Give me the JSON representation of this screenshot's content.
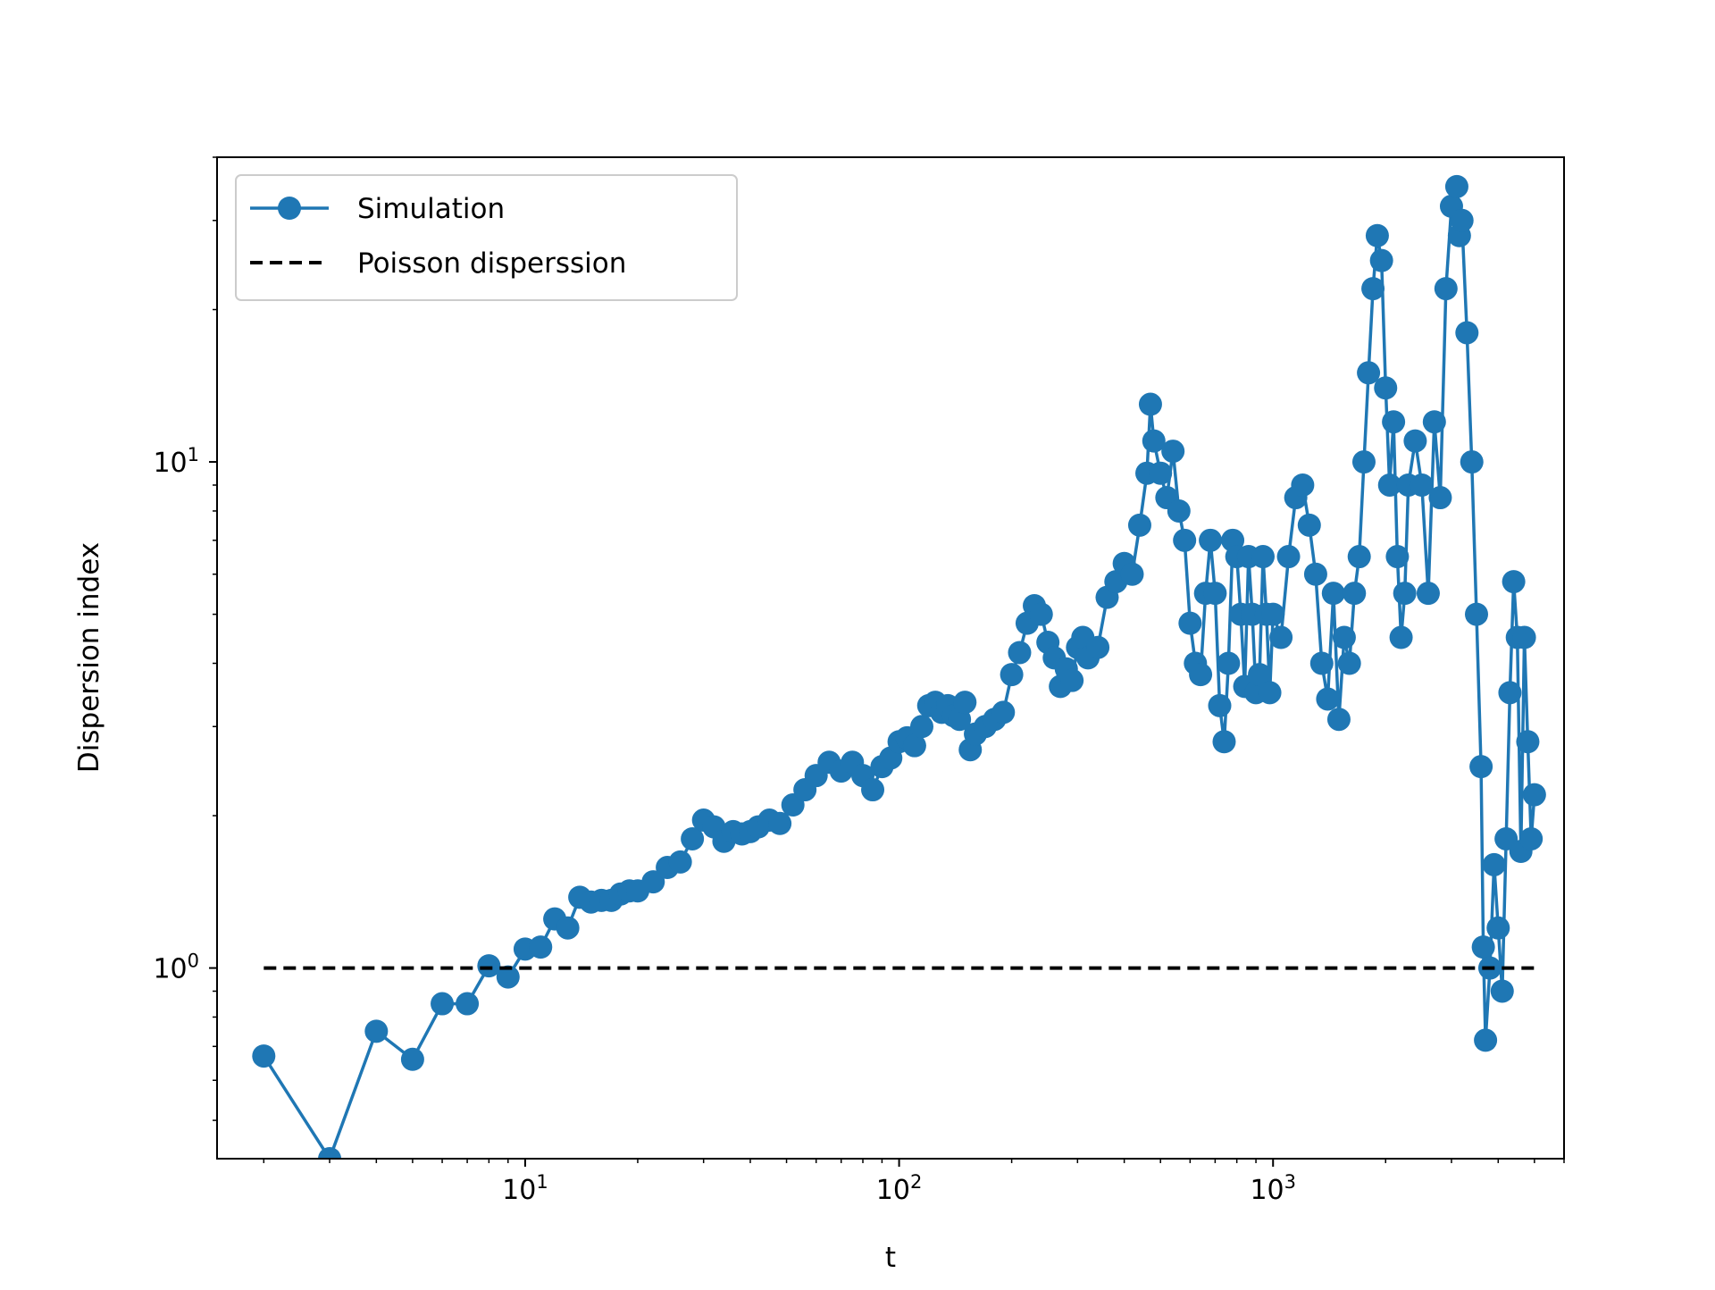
{
  "chart_data": {
    "type": "line",
    "title": "",
    "xlabel": "t",
    "ylabel": "Dispersion index",
    "xscale": "log",
    "yscale": "log",
    "xlim": [
      1.5,
      6000
    ],
    "ylim": [
      0.42,
      40
    ],
    "grid": false,
    "legend_position": "top-left",
    "x_tick_labels": [
      {
        "base": "10",
        "exponent": "1",
        "value": 10
      },
      {
        "base": "10",
        "exponent": "2",
        "value": 100
      },
      {
        "base": "10",
        "exponent": "3",
        "value": 1000
      }
    ],
    "y_tick_labels": [
      {
        "base": "10",
        "exponent": "0",
        "value": 1
      },
      {
        "base": "10",
        "exponent": "1",
        "value": 10
      }
    ],
    "series": [
      {
        "name": "Simulation",
        "color": "#1f77b4",
        "style": "line-with-circle-markers",
        "points": [
          [
            2,
            0.67
          ],
          [
            3,
            0.42
          ],
          [
            4,
            0.75
          ],
          [
            5,
            0.66
          ],
          [
            6,
            0.85
          ],
          [
            7,
            0.85
          ],
          [
            8,
            1.01
          ],
          [
            9,
            0.96
          ],
          [
            10,
            1.09
          ],
          [
            11,
            1.1
          ],
          [
            12,
            1.25
          ],
          [
            13,
            1.2
          ],
          [
            14,
            1.38
          ],
          [
            15,
            1.35
          ],
          [
            16,
            1.36
          ],
          [
            17,
            1.36
          ],
          [
            18,
            1.4
          ],
          [
            19,
            1.42
          ],
          [
            20,
            1.42
          ],
          [
            22,
            1.48
          ],
          [
            24,
            1.58
          ],
          [
            26,
            1.62
          ],
          [
            28,
            1.8
          ],
          [
            30,
            1.96
          ],
          [
            32,
            1.9
          ],
          [
            34,
            1.78
          ],
          [
            36,
            1.86
          ],
          [
            38,
            1.84
          ],
          [
            40,
            1.86
          ],
          [
            42,
            1.9
          ],
          [
            45,
            1.96
          ],
          [
            48,
            1.93
          ],
          [
            52,
            2.1
          ],
          [
            56,
            2.25
          ],
          [
            60,
            2.4
          ],
          [
            65,
            2.55
          ],
          [
            70,
            2.45
          ],
          [
            75,
            2.55
          ],
          [
            80,
            2.4
          ],
          [
            85,
            2.25
          ],
          [
            90,
            2.5
          ],
          [
            95,
            2.6
          ],
          [
            100,
            2.8
          ],
          [
            105,
            2.85
          ],
          [
            110,
            2.75
          ],
          [
            115,
            3.0
          ],
          [
            120,
            3.3
          ],
          [
            125,
            3.35
          ],
          [
            130,
            3.2
          ],
          [
            135,
            3.3
          ],
          [
            140,
            3.15
          ],
          [
            145,
            3.1
          ],
          [
            150,
            3.35
          ],
          [
            155,
            2.7
          ],
          [
            160,
            2.9
          ],
          [
            170,
            3.0
          ],
          [
            180,
            3.1
          ],
          [
            190,
            3.2
          ],
          [
            200,
            3.8
          ],
          [
            210,
            4.2
          ],
          [
            220,
            4.8
          ],
          [
            230,
            5.2
          ],
          [
            240,
            5.0
          ],
          [
            250,
            4.4
          ],
          [
            260,
            4.1
          ],
          [
            270,
            3.6
          ],
          [
            280,
            3.9
          ],
          [
            290,
            3.7
          ],
          [
            300,
            4.3
          ],
          [
            310,
            4.5
          ],
          [
            320,
            4.1
          ],
          [
            340,
            4.3
          ],
          [
            360,
            5.4
          ],
          [
            380,
            5.8
          ],
          [
            400,
            6.3
          ],
          [
            420,
            6.0
          ],
          [
            440,
            7.5
          ],
          [
            460,
            9.5
          ],
          [
            470,
            13.0
          ],
          [
            480,
            11.0
          ],
          [
            500,
            9.5
          ],
          [
            520,
            8.5
          ],
          [
            540,
            10.5
          ],
          [
            560,
            8.0
          ],
          [
            580,
            7.0
          ],
          [
            600,
            4.8
          ],
          [
            620,
            4.0
          ],
          [
            640,
            3.8
          ],
          [
            660,
            5.5
          ],
          [
            680,
            7.0
          ],
          [
            700,
            5.5
          ],
          [
            720,
            3.3
          ],
          [
            740,
            2.8
          ],
          [
            760,
            4.0
          ],
          [
            780,
            7.0
          ],
          [
            800,
            6.5
          ],
          [
            820,
            5.0
          ],
          [
            840,
            3.6
          ],
          [
            860,
            6.5
          ],
          [
            880,
            5.0
          ],
          [
            900,
            3.5
          ],
          [
            920,
            3.8
          ],
          [
            940,
            6.5
          ],
          [
            960,
            5.0
          ],
          [
            980,
            3.5
          ],
          [
            1000,
            5.0
          ],
          [
            1050,
            4.5
          ],
          [
            1100,
            6.5
          ],
          [
            1150,
            8.5
          ],
          [
            1200,
            9.0
          ],
          [
            1250,
            7.5
          ],
          [
            1300,
            6.0
          ],
          [
            1350,
            4.0
          ],
          [
            1400,
            3.4
          ],
          [
            1450,
            5.5
          ],
          [
            1500,
            3.1
          ],
          [
            1550,
            4.5
          ],
          [
            1600,
            4.0
          ],
          [
            1650,
            5.5
          ],
          [
            1700,
            6.5
          ],
          [
            1750,
            10.0
          ],
          [
            1800,
            15.0
          ],
          [
            1850,
            22.0
          ],
          [
            1900,
            28.0
          ],
          [
            1950,
            25.0
          ],
          [
            2000,
            14.0
          ],
          [
            2050,
            9.0
          ],
          [
            2100,
            12.0
          ],
          [
            2150,
            6.5
          ],
          [
            2200,
            4.5
          ],
          [
            2250,
            5.5
          ],
          [
            2300,
            9.0
          ],
          [
            2400,
            11.0
          ],
          [
            2500,
            9.0
          ],
          [
            2600,
            5.5
          ],
          [
            2700,
            12.0
          ],
          [
            2800,
            8.5
          ],
          [
            2900,
            22.0
          ],
          [
            3000,
            32.0
          ],
          [
            3100,
            35.0
          ],
          [
            3150,
            28.0
          ],
          [
            3200,
            30.0
          ],
          [
            3300,
            18.0
          ],
          [
            3400,
            10.0
          ],
          [
            3500,
            5.0
          ],
          [
            3600,
            2.5
          ],
          [
            3650,
            1.1
          ],
          [
            3700,
            0.72
          ],
          [
            3800,
            1.0
          ],
          [
            3900,
            1.6
          ],
          [
            4000,
            1.2
          ],
          [
            4100,
            0.9
          ],
          [
            4200,
            1.8
          ],
          [
            4300,
            3.5
          ],
          [
            4400,
            5.8
          ],
          [
            4500,
            4.5
          ],
          [
            4600,
            1.7
          ],
          [
            4700,
            4.5
          ],
          [
            4800,
            2.8
          ],
          [
            4900,
            1.8
          ],
          [
            5000,
            2.2
          ]
        ]
      },
      {
        "name": "Poisson disperssion",
        "color": "#000000",
        "style": "dashed",
        "points": [
          [
            2,
            1
          ],
          [
            5000,
            1
          ]
        ]
      }
    ]
  }
}
